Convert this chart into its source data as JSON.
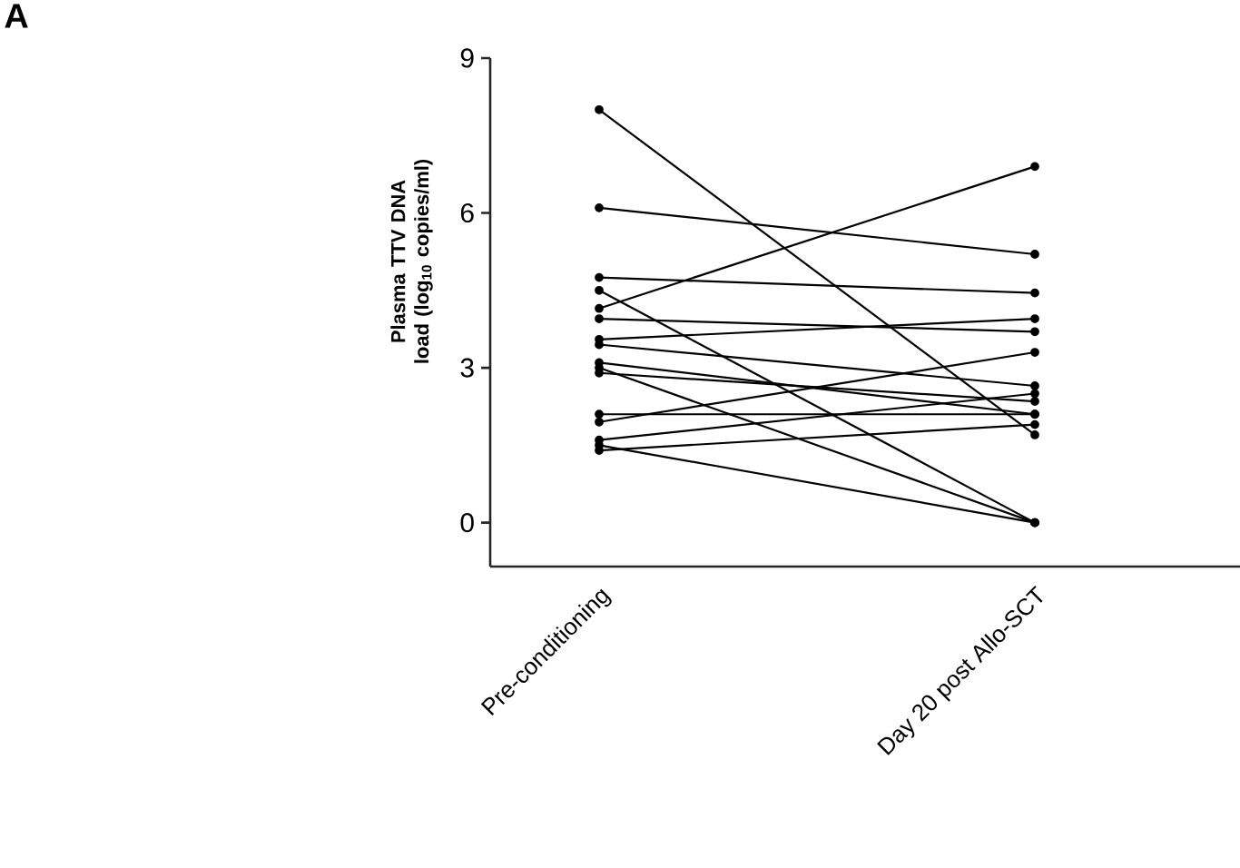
{
  "chart_data": {
    "type": "line",
    "ylabel": "Plasma TTV DNA load (log$_{10}$ copies/ml)",
    "categories": [
      "Pre-conditioning",
      "Day 20 post Allo-SCT"
    ],
    "ylim": [
      -0.85,
      9
    ],
    "yticks": [
      0,
      3,
      6,
      9
    ],
    "grid": false,
    "marker": "circle",
    "line_style": "solid",
    "annotations": [
      "A"
    ],
    "series": [
      {
        "color": "#000000",
        "values": [
          8.0,
          1.7
        ]
      },
      {
        "color": "#000000",
        "values": [
          6.1,
          5.2
        ]
      },
      {
        "color": "#000000",
        "values": [
          4.75,
          4.45
        ]
      },
      {
        "color": "#000000",
        "values": [
          4.5,
          0
        ]
      },
      {
        "color": "#000000",
        "values": [
          4.15,
          6.9
        ]
      },
      {
        "color": "#000000",
        "values": [
          3.95,
          3.7
        ]
      },
      {
        "color": "#000000",
        "values": [
          3.55,
          3.95
        ]
      },
      {
        "color": "#000000",
        "values": [
          3.45,
          2.65
        ]
      },
      {
        "color": "#000000",
        "values": [
          3.1,
          2.1
        ]
      },
      {
        "color": "#000000",
        "values": [
          3.0,
          0
        ]
      },
      {
        "color": "#000000",
        "values": [
          2.9,
          2.35
        ]
      },
      {
        "color": "#000000",
        "values": [
          2.1,
          2.1
        ]
      },
      {
        "color": "#000000",
        "values": [
          1.95,
          3.3
        ]
      },
      {
        "color": "#000000",
        "values": [
          1.6,
          2.5
        ]
      },
      {
        "color": "#000000",
        "values": [
          1.5,
          0
        ]
      },
      {
        "color": "#000000",
        "values": [
          1.4,
          1.9
        ]
      }
    ]
  }
}
